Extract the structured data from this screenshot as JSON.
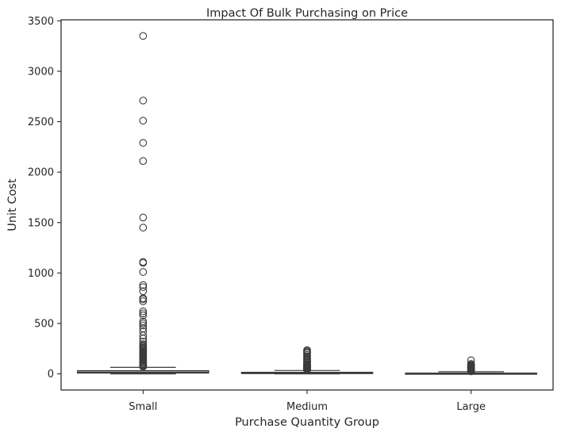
{
  "chart_data": {
    "type": "box",
    "title": "Impact Of Bulk Purchasing on Price",
    "xlabel": "Purchase Quantity Group",
    "ylabel": "Unit Cost",
    "ylim": [
      -160,
      3510
    ],
    "yticks": [
      0,
      500,
      1000,
      1500,
      2000,
      2500,
      3000,
      3500
    ],
    "categories": [
      "Small",
      "Medium",
      "Large"
    ],
    "boxes": [
      {
        "category": "Small",
        "whisker_low": 0,
        "q1": 8,
        "median": 18,
        "q3": 32,
        "whisker_high": 65,
        "outliers": [
          70,
          78,
          85,
          92,
          100,
          110,
          120,
          130,
          140,
          150,
          160,
          170,
          180,
          190,
          200,
          210,
          220,
          230,
          240,
          250,
          260,
          270,
          280,
          295,
          320,
          350,
          380,
          420,
          450,
          480,
          500,
          520,
          580,
          600,
          620,
          720,
          740,
          750,
          820,
          860,
          880,
          1010,
          1100,
          1110,
          1450,
          1550,
          2110,
          2290,
          2510,
          2710,
          3350
        ]
      },
      {
        "category": "Medium",
        "whisker_low": 0,
        "q1": 3,
        "median": 8,
        "q3": 16,
        "whisker_high": 34,
        "outliers": [
          38,
          42,
          46,
          50,
          55,
          60,
          65,
          70,
          75,
          80,
          85,
          90,
          95,
          100,
          110,
          120,
          130,
          140,
          150,
          160,
          175,
          190,
          205,
          215,
          225,
          235
        ]
      },
      {
        "category": "Large",
        "whisker_low": 0,
        "q1": 1,
        "median": 4,
        "q3": 8,
        "whisker_high": 22,
        "outliers": [
          25,
          28,
          32,
          36,
          40,
          45,
          50,
          55,
          60,
          65,
          70,
          75,
          80,
          85,
          90,
          100,
          135
        ]
      }
    ],
    "box_color": "#ffffff",
    "line_color": "#3b3b3b",
    "grid": false
  }
}
